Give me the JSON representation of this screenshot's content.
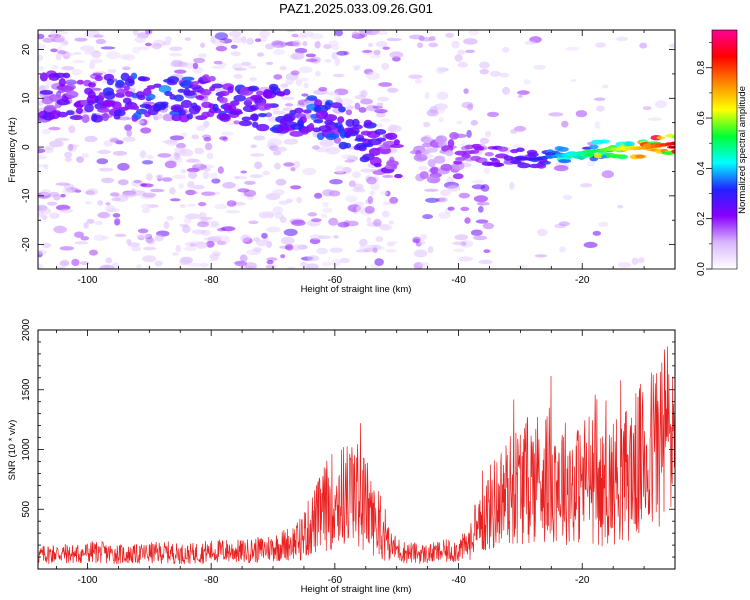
{
  "title": "PAZ1.2025.033.09.26.G01",
  "chart_data": [
    {
      "type": "heatmap",
      "xlabel": "Height of straight line (km)",
      "ylabel": "Frequency (Hz)",
      "xlim": [
        -108,
        -5
      ],
      "ylim": [
        -25,
        24
      ],
      "xticks": [
        -100,
        -80,
        -60,
        -40,
        -20
      ],
      "yticks": [
        -20,
        -10,
        0,
        10,
        20
      ],
      "colorbar": {
        "label": "Normalized spectral amplitude",
        "ticks": [
          0.0,
          0.2,
          0.4,
          0.6,
          0.8
        ],
        "range": [
          0,
          0.95
        ],
        "colors": [
          "#ffffff",
          "#d9b7ff",
          "#8800ff",
          "#2222ff",
          "#00ffff",
          "#00ff33",
          "#ffff00",
          "#ff8800",
          "#ff0000",
          "#ff0099"
        ]
      },
      "ridge": [
        {
          "x": -105,
          "y": 10.5,
          "a": 0.25
        },
        {
          "x": -95,
          "y": 10,
          "a": 0.3
        },
        {
          "x": -88,
          "y": 10.5,
          "a": 0.35
        },
        {
          "x": -82,
          "y": 10,
          "a": 0.3
        },
        {
          "x": -75,
          "y": 9,
          "a": 0.3
        },
        {
          "x": -68,
          "y": 7.5,
          "a": 0.3
        },
        {
          "x": -62,
          "y": 6,
          "a": 0.35
        },
        {
          "x": -56,
          "y": 2.5,
          "a": 0.3
        },
        {
          "x": -52,
          "y": -1.5,
          "a": 0.25
        },
        {
          "x": -45,
          "y": -3,
          "a": 0.15
        },
        {
          "x": -38,
          "y": -1.5,
          "a": 0.2
        },
        {
          "x": -33,
          "y": -2,
          "a": 0.25
        },
        {
          "x": -28,
          "y": -2.5,
          "a": 0.3
        },
        {
          "x": -22,
          "y": -1.5,
          "a": 0.45
        },
        {
          "x": -16,
          "y": -0.5,
          "a": 0.6
        },
        {
          "x": -10,
          "y": -0.2,
          "a": 0.75
        },
        {
          "x": -5,
          "y": 0.8,
          "a": 0.9
        }
      ],
      "data_gap": [
        -50,
        -47
      ]
    },
    {
      "type": "line",
      "xlabel": "Height of straight line (km)",
      "ylabel": "SNR (10 * v/v)",
      "xlim": [
        -108,
        -5
      ],
      "ylim": [
        0,
        2000
      ],
      "xticks": [
        -100,
        -80,
        -60,
        -40,
        -20
      ],
      "yticks": [
        500,
        1000,
        1500,
        2000
      ],
      "color": "#e82020",
      "series": [
        {
          "x": [
            -108,
            -105,
            -102,
            -99,
            -96,
            -93,
            -90,
            -87,
            -84,
            -81,
            -78,
            -75,
            -72,
            -69,
            -66,
            -63,
            -61,
            -59,
            -57,
            -55,
            -53,
            -51,
            -49,
            -47,
            -45,
            -43,
            -41,
            -39,
            -37,
            -36,
            -35,
            -33,
            -31,
            -29,
            -27,
            -25,
            -23,
            -21,
            -19,
            -17,
            -15,
            -13,
            -11,
            -9,
            -7,
            -5
          ],
          "y": [
            120,
            140,
            130,
            150,
            135,
            125,
            140,
            145,
            130,
            150,
            160,
            155,
            170,
            200,
            250,
            450,
            600,
            650,
            700,
            600,
            350,
            200,
            150,
            140,
            130,
            150,
            160,
            190,
            300,
            450,
            550,
            650,
            750,
            800,
            850,
            850,
            800,
            750,
            850,
            700,
            800,
            850,
            950,
            1050,
            1200,
            1300
          ]
        }
      ]
    }
  ]
}
